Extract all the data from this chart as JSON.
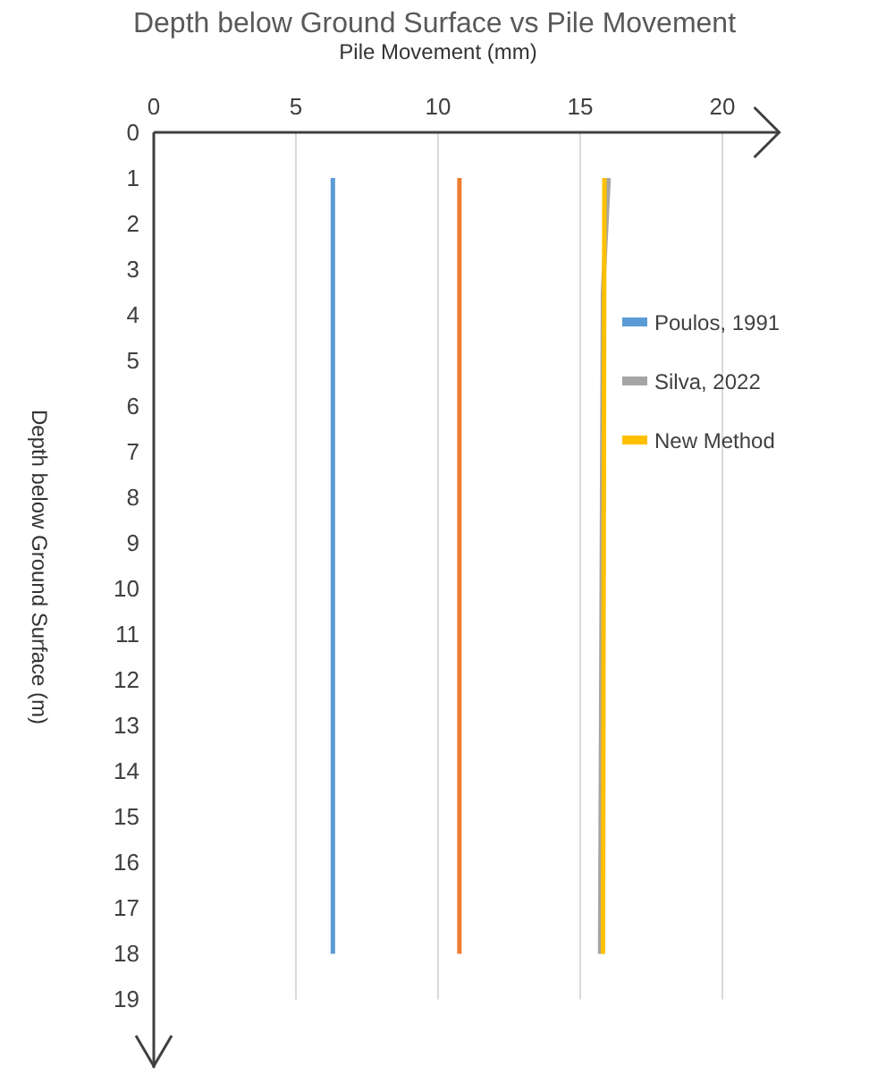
{
  "chart_data": {
    "type": "line",
    "title": "Depth below Ground Surface vs Pile Movement",
    "xlabel": "Pile Movement (mm)",
    "ylabel": "Depth below Ground Surface (m)",
    "xlim": [
      0,
      22
    ],
    "xticks": [
      0,
      5,
      10,
      15,
      20
    ],
    "ylim": [
      20.5,
      0
    ],
    "yticks": [
      0,
      1,
      2,
      3,
      4,
      5,
      6,
      7,
      8,
      9,
      10,
      11,
      12,
      13,
      14,
      15,
      16,
      17,
      18,
      19
    ],
    "grid": "x",
    "legend": "right",
    "marker": "none",
    "line_style": "solid",
    "series": [
      {
        "name": "Poulos, 1991",
        "color": "#5b9bd5",
        "x": [
          6.3,
          6.3
        ],
        "values": [
          1,
          18
        ]
      },
      {
        "color": "#ed7d31",
        "x": [
          10.75,
          10.75
        ],
        "values": [
          1,
          18
        ]
      },
      {
        "name": "Silva, 2022",
        "color": "#a5a5a5",
        "x": [
          16.0,
          15.8,
          15.7
        ],
        "values": [
          1,
          3.5,
          18
        ]
      },
      {
        "name": "New Method",
        "color": "#ffc000",
        "x": [
          15.85,
          15.8
        ],
        "values": [
          1,
          18
        ]
      }
    ]
  }
}
